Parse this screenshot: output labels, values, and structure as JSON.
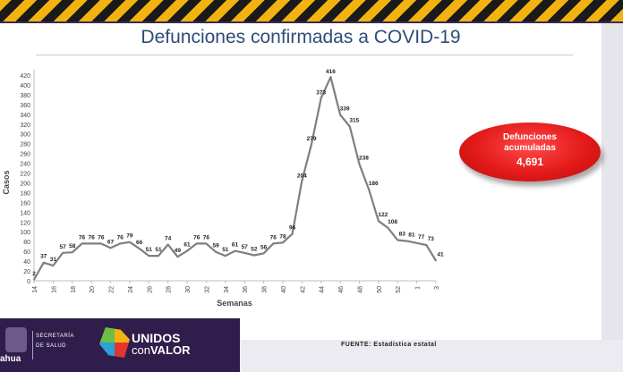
{
  "slide": {
    "title": "Defunciones confirmadas a COVID-19",
    "source": "FUENTE: Estadística estatal"
  },
  "callout": {
    "label_line1": "Defunciones",
    "label_line2": "acumuladas",
    "value": "4,691",
    "color": "#e31a1a"
  },
  "footer": {
    "state_name": "ahua",
    "department_line1": "SECRETARÍA",
    "department_line2": "DE SALUD",
    "brand_line1": "UNIDOS",
    "brand_line2a": "con",
    "brand_line2b": "VALOR",
    "background": "#2f1d4b"
  },
  "chart_data": {
    "type": "line",
    "xlabel": "Semanas",
    "ylabel": "Casos",
    "ylim": [
      0,
      420
    ],
    "yticks": [
      0,
      20,
      40,
      60,
      80,
      100,
      120,
      140,
      160,
      180,
      200,
      220,
      240,
      260,
      280,
      300,
      320,
      340,
      360,
      380,
      400,
      420
    ],
    "xtick_labels": [
      "14",
      "16",
      "18",
      "20",
      "22",
      "24",
      "26",
      "28",
      "30",
      "32",
      "34",
      "36",
      "38",
      "40",
      "42",
      "44",
      "46",
      "48",
      "50",
      "52",
      "1",
      "3"
    ],
    "line_color": "#7f7f7f",
    "grid": false,
    "series": [
      {
        "weeks": [
          "14",
          "15",
          "16",
          "17",
          "18",
          "19",
          "20",
          "21",
          "22",
          "23",
          "24",
          "25",
          "26",
          "27",
          "28",
          "29",
          "30",
          "31",
          "32",
          "33",
          "34",
          "35",
          "36",
          "37",
          "38",
          "39",
          "40",
          "41",
          "42",
          "43",
          "44",
          "45",
          "46",
          "47",
          "48",
          "49",
          "50",
          "51",
          "52",
          "53",
          "1",
          "2",
          "3"
        ],
        "values": [
          2,
          37,
          31,
          57,
          58,
          76,
          76,
          76,
          67,
          76,
          79,
          66,
          51,
          51,
          74,
          49,
          61,
          76,
          76,
          59,
          51,
          61,
          57,
          52,
          56,
          76,
          78,
          96,
          204,
          279,
          373,
          416,
          339,
          315,
          238,
          186,
          122,
          108,
          83,
          81,
          77,
          73,
          41
        ]
      }
    ]
  }
}
